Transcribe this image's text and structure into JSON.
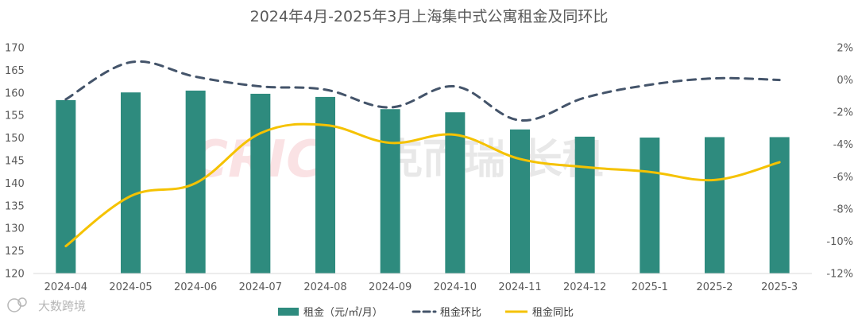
{
  "watermark": {
    "text": "大数跨境"
  },
  "chart_data": {
    "type": "bar",
    "title": "2024年4月-2025年3月上海集中式公寓租金及同环比",
    "categories": [
      "2024-04",
      "2024-05",
      "2024-06",
      "2024-07",
      "2024-08",
      "2024-09",
      "2024-10",
      "2024-11",
      "2024-12",
      "2025-1",
      "2025-2",
      "2025-3"
    ],
    "y_left": {
      "min": 120,
      "max": 170,
      "step": 5,
      "ticks": [
        "120",
        "125",
        "130",
        "135",
        "140",
        "145",
        "150",
        "155",
        "160",
        "165",
        "170"
      ]
    },
    "y_right": {
      "min": -12,
      "max": 2,
      "step": 2,
      "ticks": [
        "-12%",
        "-10%",
        "-8%",
        "-6%",
        "-4%",
        "-2%",
        "0%",
        "2%"
      ]
    },
    "series": [
      {
        "name": "租金（元/㎡/月）",
        "type": "bar",
        "axis": "left",
        "color": "#2e8b7e",
        "values": [
          158.4,
          160.1,
          160.5,
          159.8,
          159.1,
          156.4,
          155.7,
          151.9,
          150.3,
          150.1,
          150.2,
          150.2
        ]
      },
      {
        "name": "租金环比",
        "type": "line",
        "axis": "right",
        "style": "dashed",
        "color": "#44546a",
        "values": [
          -1.2,
          1.1,
          0.2,
          -0.4,
          -0.6,
          -1.7,
          -0.4,
          -2.5,
          -1.1,
          -0.3,
          0.1,
          0.0
        ]
      },
      {
        "name": "租金同比",
        "type": "line",
        "axis": "right",
        "style": "solid",
        "color": "#f5c200",
        "values": [
          -10.3,
          -7.2,
          -6.4,
          -3.3,
          -2.8,
          -3.9,
          -3.4,
          -4.9,
          -5.4,
          -5.7,
          -6.2,
          -5.1
        ]
      }
    ],
    "legend_position": "bottom",
    "grid": false
  }
}
